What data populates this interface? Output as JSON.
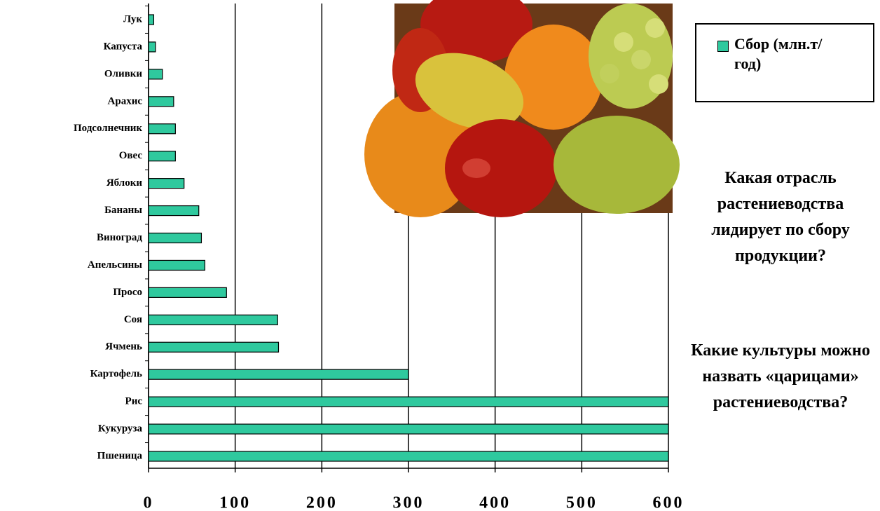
{
  "chart_data": {
    "type": "bar",
    "orientation": "horizontal",
    "categories": [
      "Лук",
      "Капуста",
      "Оливки",
      "Арахис",
      "Подсолнечник",
      "Овес",
      "Яблоки",
      "Бананы",
      "Виноград",
      "Апельсины",
      "Просо",
      "Соя",
      "Ячмень",
      "Картофель",
      "Рис",
      "Кукуруза",
      "Пшеница"
    ],
    "series": [
      {
        "name": "Сбор (млн.т/год)",
        "color": "#2fc99e",
        "values": [
          6,
          8,
          16,
          29,
          31,
          31,
          41,
          58,
          61,
          65,
          90,
          149,
          150,
          300,
          600,
          600,
          600
        ]
      }
    ],
    "xlim": [
      0,
      600
    ],
    "xticks": [
      0,
      100,
      200,
      300,
      400,
      500,
      600
    ],
    "grid": true,
    "legend": "top-right"
  },
  "questions": [
    "Какая отрасль растениеводства лидирует по сбору продукции?",
    "Какие культуры можно назвать «царицами» растениеводства?"
  ]
}
